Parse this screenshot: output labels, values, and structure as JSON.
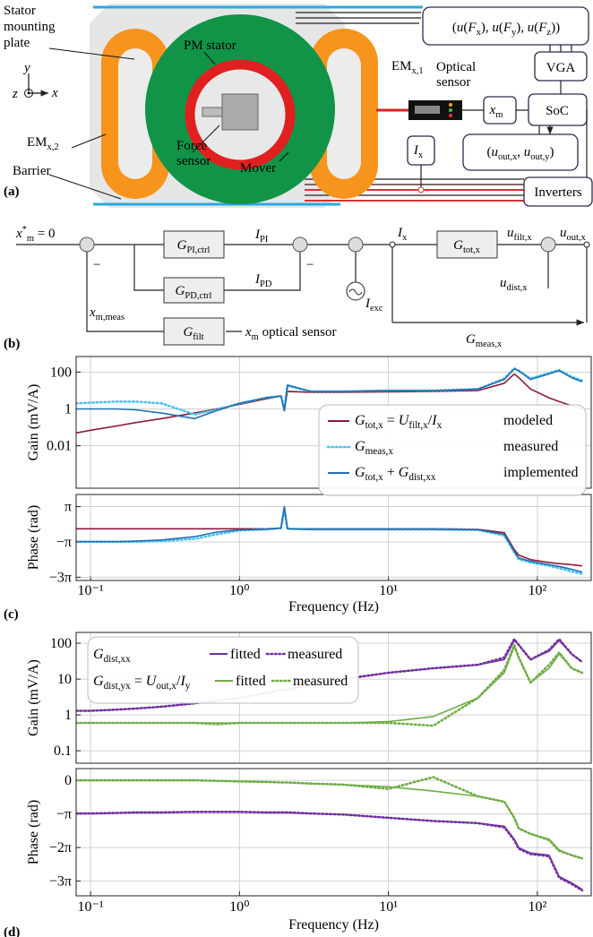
{
  "panel_a": {
    "tag": "(a)",
    "plate": [
      "Stator",
      "mounting",
      "plate"
    ],
    "pm_stator": "PM stator",
    "force_sensor": [
      "Force",
      "sensor"
    ],
    "mover": "Mover",
    "em1": [
      "EM",
      {
        "sub": "x,1"
      }
    ],
    "em2": [
      "EM",
      {
        "sub": "x,2"
      }
    ],
    "barrier": "Barrier",
    "optical": [
      "Optical",
      "sensor"
    ],
    "axis_y": "y",
    "axis_z": "z",
    "axis_x": "x",
    "forces": [
      "(",
      "u",
      "(",
      "F",
      {
        "sub": "x"
      },
      "), ",
      "u",
      "(",
      "F",
      {
        "sub": "y"
      },
      "), ",
      "u",
      "(",
      "F",
      {
        "sub": "z"
      },
      "))"
    ],
    "vga": "VGA",
    "soc": "SoC",
    "xm": [
      "x",
      {
        "sub": "m"
      }
    ],
    "ix": [
      "I",
      {
        "sub": "x"
      }
    ],
    "outputs": [
      "(",
      "u",
      {
        "sub": "out,x"
      },
      ", ",
      "u",
      {
        "sub": "out,y"
      },
      ")"
    ],
    "inverters": "Inverters"
  },
  "panel_b": {
    "tag": "(b)",
    "ref": [
      "x",
      {
        "sup": "*"
      },
      {
        "sub": "m"
      },
      " = 0"
    ],
    "signs": [
      "−",
      "−"
    ],
    "g_pi": [
      "G",
      {
        "sub": "PI,ctrl"
      }
    ],
    "i_pi": [
      "I",
      {
        "sub": "PI"
      }
    ],
    "g_pd": [
      "G",
      {
        "sub": "PD,ctrl"
      }
    ],
    "i_pd": [
      "I",
      {
        "sub": "PD"
      }
    ],
    "i_exc": [
      "I",
      {
        "sub": "exc"
      }
    ],
    "i_x": [
      "I",
      {
        "sub": "x"
      }
    ],
    "g_tot": [
      "G",
      {
        "sub": "tot,x"
      }
    ],
    "u_filt": [
      "u",
      {
        "sub": "filt,x"
      }
    ],
    "u_out": [
      "u",
      {
        "sub": "out,x"
      }
    ],
    "u_dist": [
      "u",
      {
        "sub": "dist,x"
      }
    ],
    "x_meas": [
      "x",
      {
        "sub": "m,meas"
      }
    ],
    "g_filt": [
      "G",
      {
        "sub": "filt"
      }
    ],
    "x_opt": [
      "x",
      {
        "sub": "m"
      },
      " optical sensor"
    ],
    "g_meas": [
      "G",
      {
        "sub": "meas,x"
      }
    ]
  },
  "chart_data": [
    {
      "type": "line",
      "ylabel": "Gain (mV/A)",
      "xlog": true,
      "ylog": true,
      "grid": true,
      "legend": "lower right",
      "x": [
        0.08,
        0.1,
        0.15,
        0.2,
        0.3,
        0.5,
        0.7,
        1,
        1.5,
        1.9,
        2,
        2.1,
        3,
        5,
        10,
        20,
        40,
        60,
        70,
        75,
        90,
        120,
        140,
        170,
        200
      ],
      "xlim": [
        0.08,
        230
      ],
      "ylim": [
        5e-05,
        700
      ],
      "yticks": [
        0.01,
        1,
        100
      ],
      "series": [
        {
          "name": [
            "G",
            {
              "sub": "tot,x"
            },
            " = ",
            "U",
            {
              "sub": "filt,x"
            },
            "/",
            "I",
            {
              "sub": "x"
            }
          ],
          "description": "modeled",
          "color": "#8b1a3a",
          "style": "solid",
          "values": [
            0.05,
            0.07,
            0.12,
            0.18,
            0.3,
            0.6,
            1,
            1.8,
            3.5,
            5,
            0.8,
            9,
            8,
            8,
            8.5,
            9,
            10,
            25,
            80,
            50,
            12,
            4,
            2.5,
            1.5,
            1
          ]
        },
        {
          "name": [
            "G",
            {
              "sub": "meas,x"
            }
          ],
          "description": "measured",
          "color": "#4cc3ea",
          "style": "dotted",
          "values": [
            2,
            2.2,
            2.5,
            2.5,
            2,
            0.5,
            0.9,
            2,
            4,
            5,
            1,
            18,
            9,
            9,
            10,
            10,
            12,
            45,
            160,
            120,
            45,
            90,
            130,
            55,
            35
          ]
        },
        {
          "name": [
            "G",
            {
              "sub": "tot,x"
            },
            " + ",
            "G",
            {
              "sub": "dist,xx"
            }
          ],
          "description": "implemented",
          "color": "#1f6fb2",
          "style": "solid",
          "values": [
            1,
            1,
            1,
            0.9,
            0.6,
            0.3,
            0.8,
            2,
            4,
            5,
            0.8,
            20,
            9,
            9,
            10,
            10,
            12,
            40,
            150,
            120,
            40,
            80,
            120,
            50,
            30
          ]
        }
      ]
    },
    {
      "type": "line",
      "ylabel": "Phase (rad)",
      "xlabel": "Frequency (Hz)",
      "tag": "(c)",
      "xlog": true,
      "grid": true,
      "x": [
        0.08,
        0.1,
        0.15,
        0.2,
        0.3,
        0.5,
        0.7,
        1,
        1.5,
        1.9,
        2,
        2.1,
        3,
        5,
        10,
        20,
        40,
        60,
        70,
        75,
        90,
        120,
        140,
        170,
        200
      ],
      "xlim": [
        0.08,
        230
      ],
      "xticks": [
        {
          "value": 0.1,
          "label": "10⁻¹"
        },
        {
          "value": 1,
          "label": "10⁰"
        },
        {
          "value": 10,
          "label": "10¹"
        },
        {
          "value": 100,
          "label": "10²"
        }
      ],
      "ylim": [
        -10,
        5.3
      ],
      "yticks": [
        {
          "value": 3.1416,
          "label": "π"
        },
        {
          "value": -3.1416,
          "label": "−π"
        },
        {
          "value": -9.4248,
          "label": "−3π"
        }
      ],
      "series": [
        {
          "color": "#8b1a3a",
          "style": "solid",
          "values": [
            -0.8,
            -0.8,
            -0.8,
            -0.8,
            -0.8,
            -0.8,
            -0.8,
            -0.8,
            -0.8,
            -0.7,
            3.1,
            -0.8,
            -0.8,
            -0.8,
            -0.8,
            -0.8,
            -0.9,
            -1.5,
            -4.5,
            -5.5,
            -6.3,
            -6.8,
            -7.0,
            -7.2,
            -7.4
          ]
        },
        {
          "color": "#4cc3ea",
          "style": "dotted",
          "values": [
            -3.1,
            -3.1,
            -3.1,
            -3.1,
            -3.0,
            -2.6,
            -1.8,
            -1.1,
            -0.9,
            -0.7,
            2.6,
            -0.8,
            -0.9,
            -0.9,
            -0.9,
            -0.9,
            -1.0,
            -2.0,
            -5.0,
            -6.2,
            -6.8,
            -7.4,
            -7.8,
            -8.4,
            -8.8
          ]
        },
        {
          "color": "#1f6fb2",
          "style": "solid",
          "values": [
            -3.1,
            -3.1,
            -3.1,
            -3.0,
            -2.8,
            -2.2,
            -1.4,
            -1.0,
            -0.9,
            -0.7,
            3.1,
            -0.8,
            -0.9,
            -0.9,
            -0.9,
            -0.9,
            -1.0,
            -1.8,
            -4.8,
            -6.0,
            -6.6,
            -7.2,
            -7.5,
            -8.0,
            -8.5
          ]
        }
      ]
    },
    {
      "type": "line",
      "ylabel": "Gain (mV/A)",
      "xlog": true,
      "ylog": true,
      "grid": true,
      "legend": "upper left",
      "x": [
        0.08,
        0.1,
        0.15,
        0.2,
        0.3,
        0.5,
        0.7,
        1,
        1.5,
        1.9,
        2,
        2.1,
        3,
        5,
        10,
        20,
        40,
        60,
        70,
        75,
        90,
        120,
        140,
        170,
        200
      ],
      "xlim": [
        0.08,
        230
      ],
      "ylim": [
        0.045,
        200
      ],
      "yticks": [
        0.1,
        1,
        10,
        100
      ],
      "legend_rows": [
        [
          "G",
          {
            "sub": "dist,xx"
          }
        ],
        [
          "G",
          {
            "sub": "dist,yx"
          },
          " = ",
          "U",
          {
            "sub": "out,x"
          },
          "/",
          "I",
          {
            "sub": "y"
          }
        ]
      ],
      "series": [
        {
          "name": "fitted",
          "color": "#7030a0",
          "style": "solid",
          "values": [
            1.3,
            1.3,
            1.4,
            1.5,
            1.7,
            2.1,
            2.5,
            3,
            4,
            5,
            5,
            5,
            7,
            10,
            15,
            20,
            25,
            35,
            120,
            90,
            35,
            60,
            120,
            50,
            30
          ]
        },
        {
          "name": "measured",
          "color": "#7030a0",
          "style": "dotted",
          "values": [
            1.3,
            1.3,
            1.4,
            1.5,
            1.7,
            2.1,
            2.5,
            3,
            4,
            5,
            5,
            5,
            7,
            10,
            15,
            20,
            25,
            40,
            130,
            90,
            35,
            65,
            130,
            50,
            30
          ]
        },
        {
          "name": "fitted",
          "color": "#70ad47",
          "style": "solid",
          "values": [
            0.6,
            0.6,
            0.6,
            0.6,
            0.6,
            0.6,
            0.6,
            0.6,
            0.6,
            0.6,
            0.6,
            0.6,
            0.6,
            0.6,
            0.65,
            0.9,
            3,
            15,
            80,
            40,
            8,
            20,
            50,
            20,
            15
          ]
        },
        {
          "name": "measured",
          "color": "#70ad47",
          "style": "dotted",
          "values": [
            0.6,
            0.6,
            0.6,
            0.6,
            0.6,
            0.6,
            0.55,
            0.6,
            0.6,
            0.6,
            0.6,
            0.6,
            0.6,
            0.6,
            0.6,
            0.5,
            3,
            18,
            90,
            40,
            8,
            25,
            55,
            20,
            15
          ]
        }
      ]
    },
    {
      "type": "line",
      "ylabel": "Phase (rad)",
      "xlabel": "Frequency (Hz)",
      "tag": "(d)",
      "xlog": true,
      "grid": true,
      "x": [
        0.08,
        0.1,
        0.15,
        0.2,
        0.3,
        0.5,
        0.7,
        1,
        1.5,
        1.9,
        2,
        2.1,
        3,
        5,
        10,
        20,
        40,
        60,
        70,
        75,
        90,
        120,
        140,
        170,
        200
      ],
      "xlim": [
        0.08,
        230
      ],
      "xticks": [
        {
          "value": 0.1,
          "label": "10⁻¹"
        },
        {
          "value": 1,
          "label": "10⁰"
        },
        {
          "value": 10,
          "label": "10¹"
        },
        {
          "value": 100,
          "label": "10²"
        }
      ],
      "ylim": [
        -10.8,
        1.1
      ],
      "yticks": [
        0,
        {
          "value": -3.1416,
          "label": "−π"
        },
        {
          "value": -6.2832,
          "label": "−2π"
        },
        {
          "value": -9.4248,
          "label": "−3π"
        }
      ],
      "series": [
        {
          "color": "#70ad47",
          "style": "solid",
          "values": [
            0,
            0,
            0,
            0,
            0,
            0,
            -0.05,
            -0.1,
            -0.15,
            -0.2,
            -0.2,
            -0.2,
            -0.3,
            -0.4,
            -0.6,
            -1.0,
            -1.5,
            -2.0,
            -3.5,
            -4.5,
            -5.0,
            -5.5,
            -6.5,
            -7.0,
            -7.3
          ]
        },
        {
          "color": "#70ad47",
          "style": "dotted",
          "values": [
            0,
            0,
            0,
            0,
            0,
            0,
            -0.05,
            -0.1,
            -0.15,
            -0.2,
            -0.2,
            -0.2,
            -0.3,
            -0.4,
            -0.8,
            0.3,
            -1.5,
            -2.0,
            -3.5,
            -4.5,
            -5.0,
            -5.6,
            -6.6,
            -7.0,
            -7.3
          ]
        },
        {
          "color": "#7030a0",
          "style": "solid",
          "values": [
            -3.1,
            -3.1,
            -3.05,
            -3.0,
            -3.0,
            -2.95,
            -2.95,
            -2.95,
            -3.0,
            -3.0,
            -3.0,
            -3.0,
            -3.1,
            -3.2,
            -3.5,
            -3.8,
            -4.0,
            -4.3,
            -5.5,
            -6.3,
            -6.8,
            -7.0,
            -9.0,
            -9.6,
            -10.2
          ]
        },
        {
          "color": "#7030a0",
          "style": "dotted",
          "values": [
            -3.1,
            -3.1,
            -3.05,
            -3.0,
            -3.0,
            -2.95,
            -2.95,
            -2.95,
            -3.0,
            -3.0,
            -3.0,
            -3.0,
            -3.1,
            -3.2,
            -3.5,
            -3.8,
            -4.0,
            -4.4,
            -5.6,
            -6.4,
            -6.9,
            -7.1,
            -9.1,
            -9.7,
            -10.3
          ]
        }
      ]
    }
  ]
}
